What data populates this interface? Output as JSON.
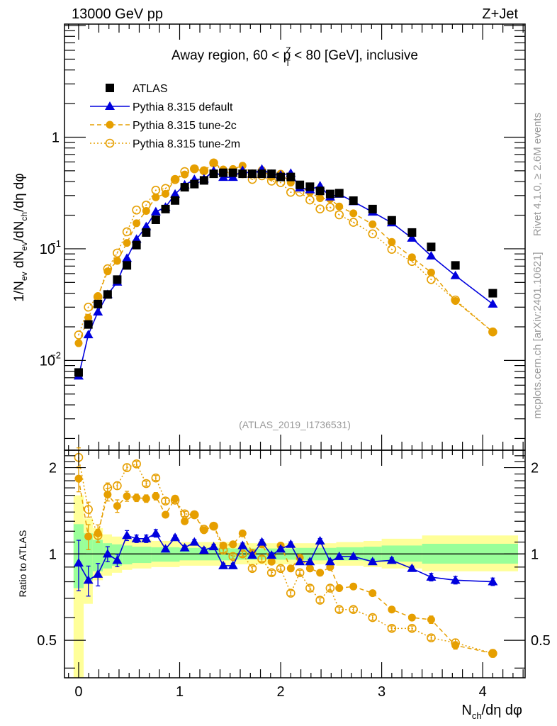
{
  "header": {
    "left": "13000 GeV pp",
    "right": "Z+Jet"
  },
  "side_labels": {
    "top": "Rivet 4.1.0, ≥ 2.6M events",
    "bottom": "mcplots.cern.ch [arXiv:2401.10621]"
  },
  "chart_data": [
    {
      "panel": "main",
      "type": "scatter",
      "title_parts": {
        "pre": "Away region, 60 < p",
        "sup": "Z",
        "sub": "T",
        "post": " < 80 [GeV], inclusive"
      },
      "ylabel": "1/N_ev dN_ev/dN_ch/dη dφ",
      "ylabel_parts": {
        "a": "1/N",
        "a_sub": "ev",
        "b": " dN",
        "b_sub": "ev",
        "c": "/dN",
        "c_sub": "ch",
        "d": "/dη dφ"
      },
      "yscale": "log",
      "ylim": [
        0.00157,
        10.3
      ],
      "xlim": [
        -0.14,
        4.42
      ],
      "yticks": [
        {
          "v": 0.01,
          "label": "10",
          "exp": "−2"
        },
        {
          "v": 0.1,
          "label": "10",
          "exp": "−1"
        },
        {
          "v": 1,
          "label": "1",
          "exp": ""
        }
      ],
      "watermark": "(ATLAS_2019_I1736531)",
      "legend_position": "top-left",
      "x": [
        0.0,
        0.096,
        0.191,
        0.287,
        0.382,
        0.478,
        0.573,
        0.669,
        0.764,
        0.86,
        0.955,
        1.05,
        1.146,
        1.241,
        1.337,
        1.432,
        1.528,
        1.623,
        1.719,
        1.814,
        1.91,
        2.0,
        2.1,
        2.19,
        2.29,
        2.39,
        2.49,
        2.58,
        2.72,
        2.91,
        3.1,
        3.3,
        3.49,
        3.73,
        4.1
      ],
      "atlas": [
        0.0078,
        0.021,
        0.032,
        0.039,
        0.053,
        0.071,
        0.108,
        0.14,
        0.182,
        0.227,
        0.271,
        0.356,
        0.38,
        0.41,
        0.47,
        0.48,
        0.48,
        0.47,
        0.47,
        0.47,
        0.47,
        0.44,
        0.44,
        0.374,
        0.36,
        0.33,
        0.31,
        0.315,
        0.27,
        0.227,
        0.18,
        0.14,
        0.104,
        0.071,
        0.04
      ],
      "series": [
        {
          "name": "ATLAS",
          "key": "atlas",
          "color": "#000000",
          "marker": "square",
          "line": "none"
        },
        {
          "name": "Pythia 8.315 default",
          "key": "default",
          "color": "#0000dd",
          "marker": "triangle",
          "line": "solid"
        },
        {
          "name": "Pythia 8.315 tune-2c",
          "key": "tune2c",
          "color": "#e69f00",
          "marker": "circle",
          "line": "dashed"
        },
        {
          "name": "Pythia 8.315 tune-2m",
          "key": "tune2m",
          "color": "#e69f00",
          "marker": "open-circle",
          "line": "dotted"
        }
      ]
    },
    {
      "panel": "ratio",
      "type": "scatter",
      "ylabel": "Ratio to ATLAS",
      "yscale": "log",
      "ylim": [
        0.37,
        2.3
      ],
      "xlim": [
        -0.14,
        4.42
      ],
      "xlabel_parts": {
        "a": "N",
        "a_sub": "ch",
        "b": "/dη dφ"
      },
      "xticks": [
        0,
        1,
        2,
        3,
        4
      ],
      "yticks": [
        {
          "v": 0.5,
          "label": "0.5"
        },
        {
          "v": 1,
          "label": "1"
        },
        {
          "v": 2,
          "label": "2"
        }
      ],
      "ratios": {
        "default": [
          0.93,
          0.81,
          0.85,
          1.0,
          0.95,
          1.16,
          1.13,
          1.13,
          1.18,
          1.04,
          1.14,
          1.05,
          1.1,
          1.03,
          1.06,
          0.91,
          0.91,
          1.07,
          0.99,
          1.1,
          0.99,
          1.04,
          1.08,
          0.94,
          0.94,
          1.11,
          0.94,
          0.98,
          0.98,
          0.94,
          0.95,
          0.89,
          0.83,
          0.81,
          0.8
        ],
        "tune2c": [
          1.83,
          1.15,
          1.18,
          1.61,
          1.47,
          1.59,
          1.57,
          1.56,
          1.59,
          1.37,
          1.56,
          1.3,
          1.37,
          1.21,
          1.25,
          1.07,
          1.08,
          1.18,
          1.01,
          1.08,
          0.94,
          1.07,
          0.89,
          0.97,
          0.89,
          0.86,
          0.9,
          0.76,
          0.77,
          0.73,
          0.64,
          0.6,
          0.59,
          0.48,
          0.45
        ],
        "tune2m": [
          2.17,
          1.43,
          1.16,
          1.7,
          1.73,
          2.0,
          2.06,
          1.76,
          1.84,
          1.53,
          1.54,
          1.38,
          1.37,
          1.22,
          1.25,
          1.03,
          0.98,
          1.0,
          0.89,
          0.96,
          0.86,
          0.89,
          0.73,
          0.86,
          0.76,
          0.69,
          0.76,
          0.64,
          0.64,
          0.6,
          0.55,
          0.55,
          0.51,
          0.49,
          0.45
        ]
      },
      "ratio_errors": {
        "default": [
          0.2,
          0.12,
          0.09,
          0.06,
          0.05,
          0.04,
          0.03,
          0.03,
          0.03,
          0.02,
          0.02,
          0.02,
          0.02,
          0.02,
          0.02,
          0.02,
          0.02,
          0.02,
          0.02,
          0.02,
          0.02,
          0.02,
          0.02,
          0.02,
          0.02,
          0.02,
          0.02,
          0.02,
          0.02,
          0.02,
          0.02,
          0.02,
          0.03,
          0.03,
          0.03
        ],
        "tune2c": [
          0.1,
          0.1,
          0.07,
          0.05,
          0.05,
          0.04,
          0.03,
          0.03,
          0.03,
          0.02,
          0.02,
          0.02,
          0.02,
          0.02,
          0.02,
          0.02,
          0.02,
          0.02,
          0.02,
          0.02,
          0.02,
          0.02,
          0.02,
          0.02,
          0.02,
          0.02,
          0.02,
          0.02,
          0.02,
          0.02,
          0.02,
          0.02,
          0.03,
          0.03,
          0.03
        ],
        "tune2m": [
          0.08,
          0.06,
          0.05,
          0.04,
          0.03,
          0.03,
          0.02,
          0.02,
          0.02,
          0.02,
          0.02,
          0.02,
          0.02,
          0.02,
          0.02,
          0.02,
          0.02,
          0.02,
          0.02,
          0.02,
          0.02,
          0.02,
          0.02,
          0.02,
          0.02,
          0.02,
          0.02,
          0.02,
          0.02,
          0.02,
          0.02,
          0.02,
          0.02,
          0.03,
          0.03
        ]
      },
      "bands": [
        {
          "x0": -0.05,
          "x1": 0.05,
          "g": [
            0.76,
            1.27
          ],
          "y": [
            0.37,
            1.6
          ]
        },
        {
          "x0": 0.05,
          "x1": 0.14,
          "g": [
            0.81,
            1.18
          ],
          "y": [
            0.67,
            1.33
          ]
        },
        {
          "x0": 0.14,
          "x1": 0.24,
          "g": [
            0.87,
            1.12
          ],
          "y": [
            0.81,
            1.23
          ]
        },
        {
          "x0": 0.24,
          "x1": 0.33,
          "g": [
            0.89,
            1.09
          ],
          "y": [
            0.84,
            1.17
          ]
        },
        {
          "x0": 0.33,
          "x1": 0.43,
          "g": [
            0.91,
            1.08
          ],
          "y": [
            0.86,
            1.15
          ]
        },
        {
          "x0": 0.43,
          "x1": 0.53,
          "g": [
            0.92,
            1.07
          ],
          "y": [
            0.88,
            1.13
          ]
        },
        {
          "x0": 0.53,
          "x1": 0.72,
          "g": [
            0.93,
            1.06
          ],
          "y": [
            0.89,
            1.12
          ]
        },
        {
          "x0": 0.72,
          "x1": 1.0,
          "g": [
            0.94,
            1.055
          ],
          "y": [
            0.9,
            1.11
          ]
        },
        {
          "x0": 1.0,
          "x1": 1.5,
          "g": [
            0.95,
            1.05
          ],
          "y": [
            0.91,
            1.1
          ]
        },
        {
          "x0": 1.5,
          "x1": 2.15,
          "g": [
            0.955,
            1.045
          ],
          "y": [
            0.92,
            1.09
          ]
        },
        {
          "x0": 2.15,
          "x1": 2.55,
          "g": [
            0.95,
            1.05
          ],
          "y": [
            0.92,
            1.09
          ]
        },
        {
          "x0": 2.55,
          "x1": 2.82,
          "g": [
            0.95,
            1.055
          ],
          "y": [
            0.91,
            1.1
          ]
        },
        {
          "x0": 2.82,
          "x1": 3.0,
          "g": [
            0.945,
            1.06
          ],
          "y": [
            0.9,
            1.11
          ]
        },
        {
          "x0": 3.0,
          "x1": 3.4,
          "g": [
            0.94,
            1.07
          ],
          "y": [
            0.89,
            1.13
          ]
        },
        {
          "x0": 3.4,
          "x1": 4.35,
          "g": [
            0.925,
            1.085
          ],
          "y": [
            0.87,
            1.16
          ]
        }
      ]
    }
  ]
}
